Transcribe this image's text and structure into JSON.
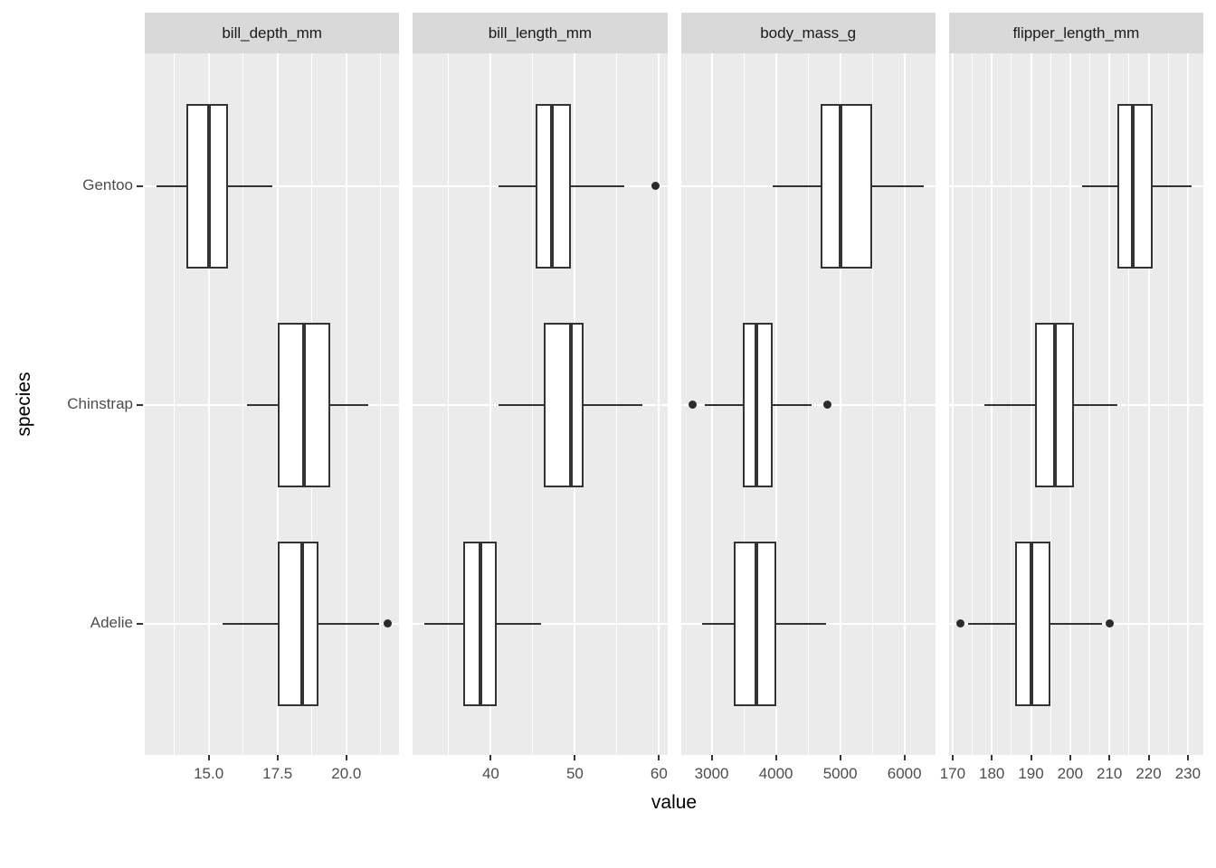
{
  "chart_data": {
    "type": "boxplot",
    "orientation": "horizontal",
    "title": "",
    "xlabel": "value",
    "ylabel": "species",
    "legend": "none",
    "grid": "major-and-minor-white-on-grey-panel",
    "categories": [
      "Gentoo",
      "Chinstrap",
      "Adelie"
    ],
    "facets": [
      {
        "label": "bill_depth_mm",
        "xlim": [
          12.68,
          21.92
        ],
        "x_major_ticks": [
          15.0,
          17.5,
          20.0
        ],
        "x_tick_labels": [
          "15.0",
          "17.5",
          "20.0"
        ],
        "x_minor_ticks": [
          13.75,
          16.25,
          18.75,
          21.25
        ],
        "boxes": [
          {
            "species": "Gentoo",
            "whisker_low": 13.1,
            "q1": 14.2,
            "median": 15.0,
            "q3": 15.7,
            "whisker_high": 17.3,
            "outliers": []
          },
          {
            "species": "Chinstrap",
            "whisker_low": 16.4,
            "q1": 17.5,
            "median": 18.45,
            "q3": 19.4,
            "whisker_high": 20.8,
            "outliers": []
          },
          {
            "species": "Adelie",
            "whisker_low": 15.5,
            "q1": 17.5,
            "median": 18.4,
            "q3": 19.0,
            "whisker_high": 21.2,
            "outliers": [
              21.5
            ]
          }
        ]
      },
      {
        "label": "bill_length_mm",
        "xlim": [
          30.73,
          60.98
        ],
        "x_major_ticks": [
          40,
          50,
          60
        ],
        "x_tick_labels": [
          "40",
          "50",
          "60"
        ],
        "x_minor_ticks": [
          35,
          45,
          55
        ],
        "boxes": [
          {
            "species": "Gentoo",
            "whisker_low": 40.9,
            "q1": 45.3,
            "median": 47.3,
            "q3": 49.55,
            "whisker_high": 55.9,
            "outliers": [
              59.6
            ]
          },
          {
            "species": "Chinstrap",
            "whisker_low": 40.9,
            "q1": 46.35,
            "median": 49.55,
            "q3": 51.08,
            "whisker_high": 58.0,
            "outliers": []
          },
          {
            "species": "Adelie",
            "whisker_low": 32.1,
            "q1": 36.75,
            "median": 38.8,
            "q3": 40.75,
            "whisker_high": 46.0,
            "outliers": []
          }
        ]
      },
      {
        "label": "body_mass_g",
        "xlim": [
          2520,
          6480
        ],
        "x_major_ticks": [
          3000,
          4000,
          5000,
          6000
        ],
        "x_tick_labels": [
          "3000",
          "4000",
          "5000",
          "6000"
        ],
        "x_minor_ticks": [
          3500,
          4500,
          5500
        ],
        "boxes": [
          {
            "species": "Gentoo",
            "whisker_low": 3950,
            "q1": 4700,
            "median": 5000,
            "q3": 5500,
            "whisker_high": 6300,
            "outliers": []
          },
          {
            "species": "Chinstrap",
            "whisker_low": 2900,
            "q1": 3487.5,
            "median": 3700,
            "q3": 3950,
            "whisker_high": 4550,
            "outliers": [
              2700,
              4800
            ]
          },
          {
            "species": "Adelie",
            "whisker_low": 2850,
            "q1": 3350,
            "median": 3700,
            "q3": 4000,
            "whisker_high": 4775,
            "outliers": []
          }
        ]
      },
      {
        "label": "flipper_length_mm",
        "xlim": [
          169.05,
          233.95
        ],
        "x_major_ticks": [
          170,
          180,
          190,
          200,
          210,
          220,
          230
        ],
        "x_tick_labels": [
          "170",
          "180",
          "190",
          "200",
          "210",
          "220",
          "230"
        ],
        "x_minor_ticks": [
          175,
          185,
          195,
          205,
          215,
          225
        ],
        "boxes": [
          {
            "species": "Gentoo",
            "whisker_low": 203,
            "q1": 212,
            "median": 216,
            "q3": 221,
            "whisker_high": 231,
            "outliers": []
          },
          {
            "species": "Chinstrap",
            "whisker_low": 178,
            "q1": 191,
            "median": 196,
            "q3": 201,
            "whisker_high": 212,
            "outliers": []
          },
          {
            "species": "Adelie",
            "whisker_low": 174,
            "q1": 186,
            "median": 190,
            "q3": 195,
            "whisker_high": 208,
            "outliers": [
              172,
              210
            ]
          }
        ]
      }
    ],
    "style": {
      "panel_bg": "#EBEBEB",
      "strip_bg": "#D9D9D9",
      "strip_text": "#1A1A1A",
      "grid_color": "#FFFFFF",
      "box_fill": "#FFFFFF",
      "box_border": "#333333",
      "outlier_color": "#2B2B2B",
      "tick_mark_color": "#333333",
      "axis_text_color": "#4D4D4D",
      "axis_title_color": "#000000",
      "figure_bg": "#FFFFFF"
    }
  }
}
